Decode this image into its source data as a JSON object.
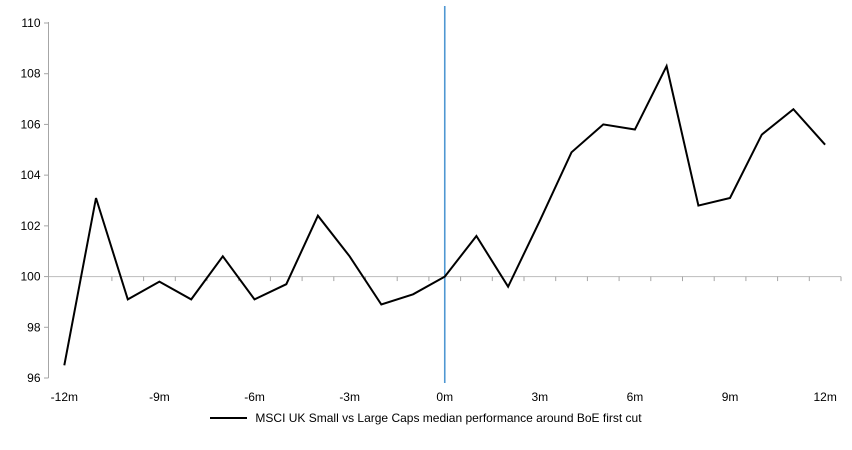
{
  "chart_data": {
    "type": "line",
    "title": "",
    "x": [
      -12,
      -11,
      -10,
      -9,
      -8,
      -7,
      -6,
      -5,
      -4,
      -3,
      -2,
      -1,
      0,
      1,
      2,
      3,
      4,
      5,
      6,
      7,
      8,
      9,
      10,
      11,
      12
    ],
    "x_tick_months": [
      -12,
      -9,
      -6,
      -3,
      0,
      3,
      6,
      9,
      12
    ],
    "x_tick_labels": [
      "-12m",
      "-9m",
      "-6m",
      "-3m",
      "0m",
      "3m",
      "6m",
      "9m",
      "12m"
    ],
    "series": [
      {
        "name": "MSCI UK Small vs Large Caps median performance around BoE first cut",
        "color": "#000000",
        "values": [
          96.5,
          103.1,
          99.1,
          99.8,
          99.1,
          100.8,
          99.1,
          99.7,
          102.4,
          100.8,
          98.9,
          99.3,
          100.0,
          101.6,
          99.6,
          102.2,
          104.9,
          106.0,
          105.8,
          108.3,
          102.8,
          103.1,
          105.6,
          106.6,
          105.2
        ]
      }
    ],
    "ylim": [
      96,
      110
    ],
    "y_ticks": [
      96,
      98,
      100,
      102,
      104,
      106,
      108,
      110
    ],
    "y_tick_labels": [
      "96",
      "98",
      "100",
      "102",
      "104",
      "106",
      "108",
      "110"
    ],
    "grid": "baseline-only",
    "baseline": {
      "value": 100,
      "color": "#c4c4c4"
    },
    "event_marker": {
      "x": 0,
      "color": "#4f97d2"
    },
    "axis_color": "#a6a6a6",
    "legend_position": "bottom-center"
  },
  "legend": {
    "label": "MSCI UK Small vs Large Caps median performance around BoE first cut"
  }
}
